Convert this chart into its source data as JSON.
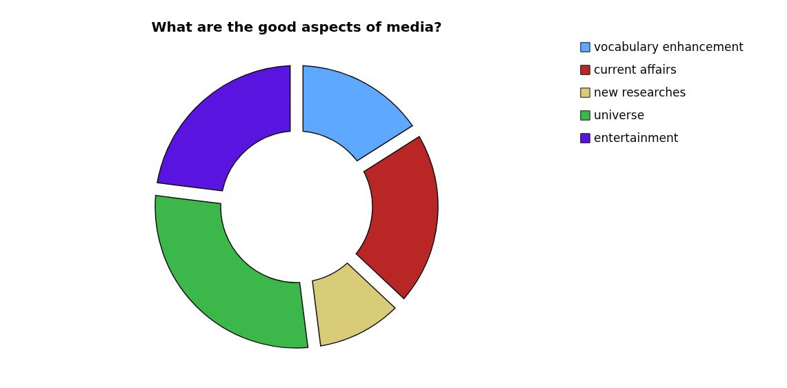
{
  "chart_data": {
    "type": "donut",
    "title": "What are the good aspects of media?",
    "categories": [
      "vocabulary enhancement",
      "current affairs",
      "new researches",
      "universe",
      "entertainment"
    ],
    "values": [
      16,
      21,
      11,
      29,
      23
    ],
    "colors": [
      "#5fa8ff",
      "#b82626",
      "#d8cc78",
      "#3cb84a",
      "#5a14e0"
    ],
    "legend": "right"
  }
}
